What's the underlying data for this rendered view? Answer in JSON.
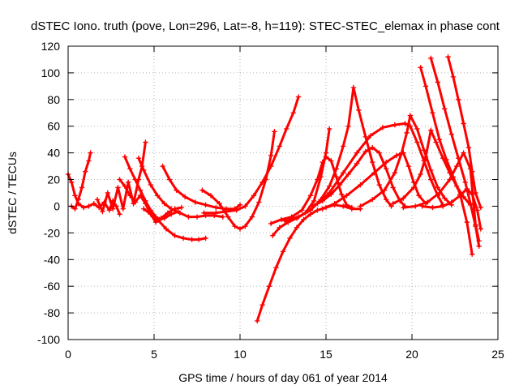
{
  "chart_data": {
    "type": "scatter",
    "title": "dSTEC Iono. truth (pove, Lon=296, Lat=-8, h=119): STEC-STEC_elemax in phase cont",
    "xlabel": "GPS time / hours of day 061 of year 2014",
    "ylabel": "dSTEC  / TECUs",
    "xlim": [
      0,
      25
    ],
    "ylim": [
      -100,
      120
    ],
    "xticks": [
      0,
      5,
      10,
      15,
      20,
      25
    ],
    "yticks": [
      -100,
      -80,
      -60,
      -40,
      -20,
      0,
      20,
      40,
      60,
      80,
      100,
      120
    ],
    "grid": true,
    "marker": "plus",
    "color": "#ff0000",
    "series": [
      {
        "points": [
          [
            0.0,
            24
          ],
          [
            0.2,
            18
          ],
          [
            0.4,
            8
          ],
          [
            0.6,
            2
          ],
          [
            0.9,
            -1
          ],
          [
            1.2,
            0
          ],
          [
            1.5,
            2
          ],
          [
            1.8,
            -1
          ],
          [
            2.1,
            3
          ],
          [
            2.4,
            -3
          ],
          [
            2.6,
            4
          ],
          [
            2.8,
            0
          ],
          [
            3.0,
            -6
          ]
        ]
      },
      {
        "points": [
          [
            0.2,
            0
          ],
          [
            0.4,
            -2
          ],
          [
            0.6,
            5
          ],
          [
            0.8,
            14
          ],
          [
            1.0,
            26
          ],
          [
            1.2,
            34
          ],
          [
            1.3,
            40
          ]
        ]
      },
      {
        "points": [
          [
            1.7,
            5
          ],
          [
            2.0,
            -4
          ],
          [
            2.3,
            10
          ],
          [
            2.6,
            -2
          ],
          [
            2.9,
            14
          ],
          [
            3.2,
            -2
          ],
          [
            3.5,
            18
          ],
          [
            3.8,
            2
          ],
          [
            4.1,
            20
          ],
          [
            4.3,
            30
          ],
          [
            4.5,
            48
          ]
        ]
      },
      {
        "points": [
          [
            3.0,
            20
          ],
          [
            3.3,
            15
          ],
          [
            3.6,
            8
          ],
          [
            3.9,
            3
          ],
          [
            4.2,
            8
          ],
          [
            4.5,
            2
          ],
          [
            4.8,
            -6
          ],
          [
            5.1,
            -12
          ],
          [
            5.4,
            -9
          ],
          [
            5.8,
            -5
          ],
          [
            6.2,
            -2
          ],
          [
            6.6,
            -1
          ]
        ]
      },
      {
        "points": [
          [
            3.3,
            37
          ],
          [
            3.6,
            28
          ],
          [
            3.9,
            20
          ],
          [
            4.2,
            12
          ],
          [
            4.5,
            4
          ],
          [
            4.8,
            -3
          ],
          [
            5.1,
            -8
          ],
          [
            5.3,
            -10
          ],
          [
            5.6,
            -9
          ],
          [
            6.0,
            -6
          ],
          [
            6.4,
            -4
          ]
        ]
      },
      {
        "points": [
          [
            4.1,
            36
          ],
          [
            4.4,
            27
          ],
          [
            4.8,
            16
          ],
          [
            5.2,
            8
          ],
          [
            5.6,
            2
          ],
          [
            6.0,
            -2
          ],
          [
            6.5,
            -5
          ],
          [
            7.0,
            -8
          ],
          [
            7.5,
            -8
          ],
          [
            8.0,
            -7
          ],
          [
            8.5,
            -7
          ],
          [
            9.0,
            -8
          ]
        ]
      },
      {
        "points": [
          [
            5.5,
            30
          ],
          [
            5.9,
            20
          ],
          [
            6.3,
            12
          ],
          [
            6.8,
            7
          ],
          [
            7.4,
            3
          ],
          [
            8.0,
            1
          ],
          [
            8.6,
            -1
          ],
          [
            9.2,
            -2
          ],
          [
            9.7,
            -2
          ],
          [
            10.0,
            1
          ]
        ]
      },
      {
        "points": [
          [
            4.4,
            -2
          ],
          [
            4.8,
            -6
          ],
          [
            5.2,
            -10
          ],
          [
            5.7,
            -17
          ],
          [
            6.2,
            -22
          ],
          [
            6.7,
            -24
          ],
          [
            7.2,
            -25
          ],
          [
            7.6,
            -25
          ],
          [
            8.0,
            -24
          ]
        ]
      },
      {
        "points": [
          [
            7.8,
            12
          ],
          [
            8.3,
            8
          ],
          [
            8.8,
            2
          ],
          [
            9.3,
            -8
          ],
          [
            9.7,
            -15
          ],
          [
            10.0,
            -17
          ],
          [
            10.3,
            -15
          ],
          [
            10.7,
            -8
          ],
          [
            11.1,
            3
          ],
          [
            11.5,
            20
          ],
          [
            11.8,
            38
          ],
          [
            12.0,
            56
          ]
        ]
      },
      {
        "points": [
          [
            7.9,
            -5
          ],
          [
            8.6,
            -5
          ],
          [
            9.2,
            -4
          ],
          [
            9.8,
            -3
          ],
          [
            10.3,
            0
          ],
          [
            10.8,
            8
          ],
          [
            11.3,
            18
          ],
          [
            11.8,
            30
          ],
          [
            12.3,
            45
          ],
          [
            12.7,
            58
          ],
          [
            13.1,
            70
          ],
          [
            13.4,
            82
          ]
        ]
      },
      {
        "points": [
          [
            11.0,
            -86
          ],
          [
            11.3,
            -74
          ],
          [
            11.7,
            -60
          ],
          [
            12.1,
            -46
          ],
          [
            12.5,
            -34
          ],
          [
            12.9,
            -24
          ],
          [
            13.3,
            -16
          ],
          [
            13.7,
            -10
          ],
          [
            14.1,
            -6
          ],
          [
            14.5,
            -3
          ],
          [
            15.0,
            -1
          ],
          [
            15.5,
            1
          ],
          [
            16.0,
            0
          ],
          [
            16.5,
            -2
          ],
          [
            17.0,
            -2
          ]
        ]
      },
      {
        "points": [
          [
            11.9,
            -22
          ],
          [
            12.3,
            -16
          ],
          [
            12.8,
            -12
          ],
          [
            13.3,
            -9
          ],
          [
            13.8,
            -5
          ],
          [
            14.3,
            4
          ],
          [
            14.7,
            22
          ],
          [
            15.0,
            40
          ],
          [
            15.2,
            58
          ]
        ]
      },
      {
        "points": [
          [
            11.8,
            -13
          ],
          [
            12.4,
            -10
          ],
          [
            13.0,
            -8
          ],
          [
            13.6,
            -3
          ],
          [
            14.1,
            8
          ],
          [
            14.5,
            20
          ],
          [
            14.8,
            33
          ],
          [
            15.0,
            37
          ],
          [
            15.3,
            34
          ],
          [
            15.6,
            22
          ],
          [
            15.9,
            9
          ],
          [
            16.2,
            1
          ],
          [
            16.5,
            -1
          ]
        ]
      },
      {
        "points": [
          [
            12.6,
            -11
          ],
          [
            13.4,
            -8
          ],
          [
            14.1,
            -3
          ],
          [
            14.7,
            5
          ],
          [
            15.2,
            15
          ],
          [
            15.6,
            28
          ],
          [
            16.0,
            45
          ],
          [
            16.3,
            60
          ],
          [
            16.6,
            89
          ],
          [
            16.9,
            72
          ],
          [
            17.3,
            52
          ],
          [
            17.7,
            33
          ],
          [
            18.1,
            16
          ],
          [
            18.5,
            5
          ],
          [
            18.8,
            0
          ]
        ]
      },
      {
        "points": [
          [
            14.2,
            0
          ],
          [
            14.8,
            4
          ],
          [
            15.3,
            9
          ],
          [
            15.8,
            16
          ],
          [
            16.3,
            24
          ],
          [
            16.8,
            32
          ],
          [
            17.3,
            41
          ],
          [
            17.7,
            44
          ],
          [
            18.1,
            40
          ],
          [
            18.5,
            28
          ],
          [
            18.9,
            14
          ],
          [
            19.3,
            4
          ],
          [
            19.6,
            0
          ]
        ]
      },
      {
        "points": [
          [
            14.5,
            2
          ],
          [
            15.2,
            10
          ],
          [
            16.0,
            25
          ],
          [
            16.8,
            40
          ],
          [
            17.6,
            53
          ],
          [
            18.3,
            59
          ],
          [
            19.0,
            61
          ],
          [
            19.6,
            62
          ],
          [
            19.9,
            60
          ],
          [
            20.3,
            48
          ],
          [
            20.7,
            34
          ],
          [
            21.1,
            20
          ],
          [
            21.5,
            8
          ],
          [
            21.8,
            1
          ]
        ]
      },
      {
        "points": [
          [
            14.8,
            -2
          ],
          [
            15.5,
            2
          ],
          [
            16.2,
            8
          ],
          [
            17.0,
            16
          ],
          [
            17.8,
            25
          ],
          [
            18.5,
            33
          ],
          [
            19.1,
            38
          ],
          [
            19.5,
            40
          ],
          [
            19.8,
            30
          ],
          [
            20.1,
            18
          ],
          [
            20.4,
            8
          ],
          [
            20.8,
            2
          ]
        ]
      },
      {
        "points": [
          [
            17.0,
            0
          ],
          [
            17.7,
            5
          ],
          [
            18.4,
            12
          ],
          [
            19.0,
            25
          ],
          [
            19.4,
            40
          ],
          [
            19.7,
            55
          ],
          [
            19.9,
            68
          ],
          [
            20.3,
            58
          ],
          [
            20.7,
            42
          ],
          [
            21.1,
            27
          ],
          [
            21.5,
            14
          ],
          [
            21.9,
            6
          ],
          [
            22.3,
            1
          ]
        ]
      },
      {
        "points": [
          [
            18.9,
            2
          ],
          [
            19.5,
            6
          ],
          [
            20.1,
            14
          ],
          [
            20.5,
            24
          ],
          [
            20.8,
            37
          ],
          [
            21.1,
            57
          ],
          [
            21.4,
            48
          ],
          [
            21.8,
            36
          ],
          [
            22.2,
            25
          ],
          [
            22.6,
            15
          ],
          [
            23.0,
            7
          ],
          [
            23.4,
            1
          ]
        ]
      },
      {
        "points": [
          [
            20.5,
            104
          ],
          [
            20.8,
            90
          ],
          [
            21.2,
            70
          ],
          [
            21.6,
            50
          ],
          [
            22.0,
            35
          ],
          [
            22.4,
            22
          ],
          [
            22.8,
            9
          ],
          [
            23.2,
            -12
          ],
          [
            23.5,
            -36
          ]
        ]
      },
      {
        "points": [
          [
            21.1,
            111
          ],
          [
            21.5,
            93
          ],
          [
            21.9,
            73
          ],
          [
            22.3,
            54
          ],
          [
            22.7,
            36
          ],
          [
            23.1,
            18
          ],
          [
            23.4,
            2
          ],
          [
            23.7,
            -15
          ],
          [
            23.9,
            -30
          ]
        ]
      },
      {
        "points": [
          [
            22.1,
            112
          ],
          [
            22.4,
            97
          ],
          [
            22.7,
            80
          ],
          [
            23.0,
            62
          ],
          [
            23.3,
            44
          ],
          [
            23.5,
            26
          ],
          [
            23.7,
            10
          ],
          [
            24.0,
            -1
          ]
        ]
      },
      {
        "points": [
          [
            19.5,
            -1
          ],
          [
            20.2,
            0
          ],
          [
            20.9,
            3
          ],
          [
            21.6,
            10
          ],
          [
            22.2,
            20
          ],
          [
            22.6,
            30
          ],
          [
            23.0,
            40
          ],
          [
            23.4,
            28
          ],
          [
            23.7,
            -14
          ],
          [
            23.9,
            -26
          ]
        ]
      },
      {
        "points": [
          [
            20.6,
            0
          ],
          [
            21.2,
            -1
          ],
          [
            21.8,
            0
          ],
          [
            22.3,
            3
          ],
          [
            22.8,
            8
          ],
          [
            23.2,
            13
          ],
          [
            23.5,
            9
          ],
          [
            23.8,
            -3
          ],
          [
            24.0,
            -17
          ]
        ]
      }
    ]
  }
}
